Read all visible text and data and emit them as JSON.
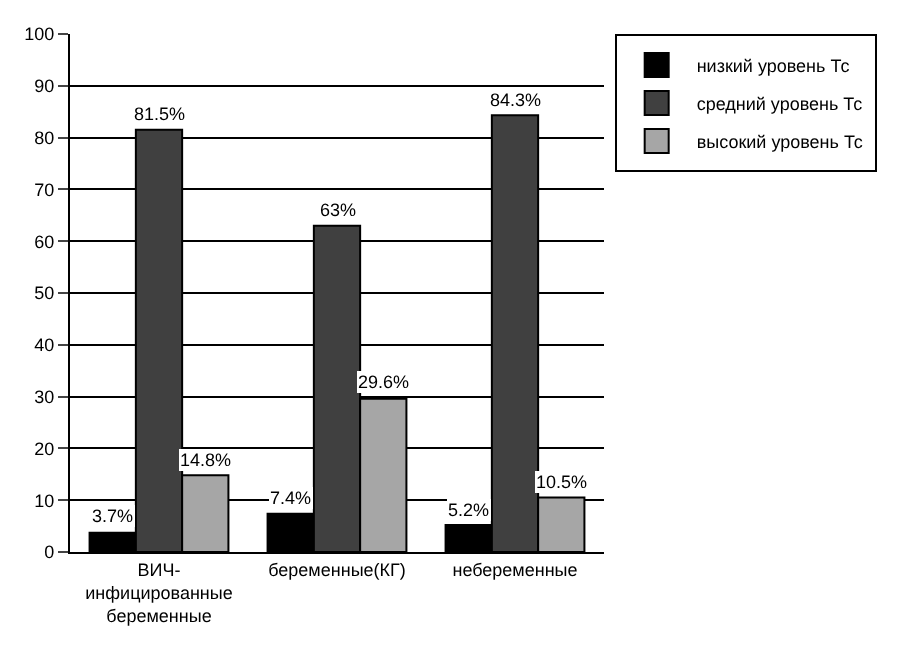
{
  "chart_data": {
    "type": "bar",
    "categories": [
      "ВИЧ-\nинфицированные\nбеременные",
      "беременные(КГ)",
      "небеременные"
    ],
    "series": [
      {
        "name": "низкий уровень Тс",
        "color": "#000000",
        "values": [
          3.7,
          7.4,
          5.2
        ],
        "value_labels": [
          "3.7%",
          "7.4%",
          "5.2%"
        ]
      },
      {
        "name": "средний уровень Тс",
        "color": "#404040",
        "values": [
          81.5,
          63,
          84.3
        ],
        "value_labels": [
          "81.5%",
          "63%",
          "84.3%"
        ]
      },
      {
        "name": "высокий уровень Тс",
        "color": "#a6a6a6",
        "values": [
          14.8,
          29.6,
          10.5
        ],
        "value_labels": [
          "14.8%",
          "29.6%",
          "10.5%"
        ]
      }
    ],
    "ylim": [
      0,
      100
    ],
    "yticks": [
      0,
      10,
      20,
      30,
      40,
      50,
      60,
      70,
      80,
      90,
      100
    ],
    "grid": "y",
    "legend": "top right"
  }
}
